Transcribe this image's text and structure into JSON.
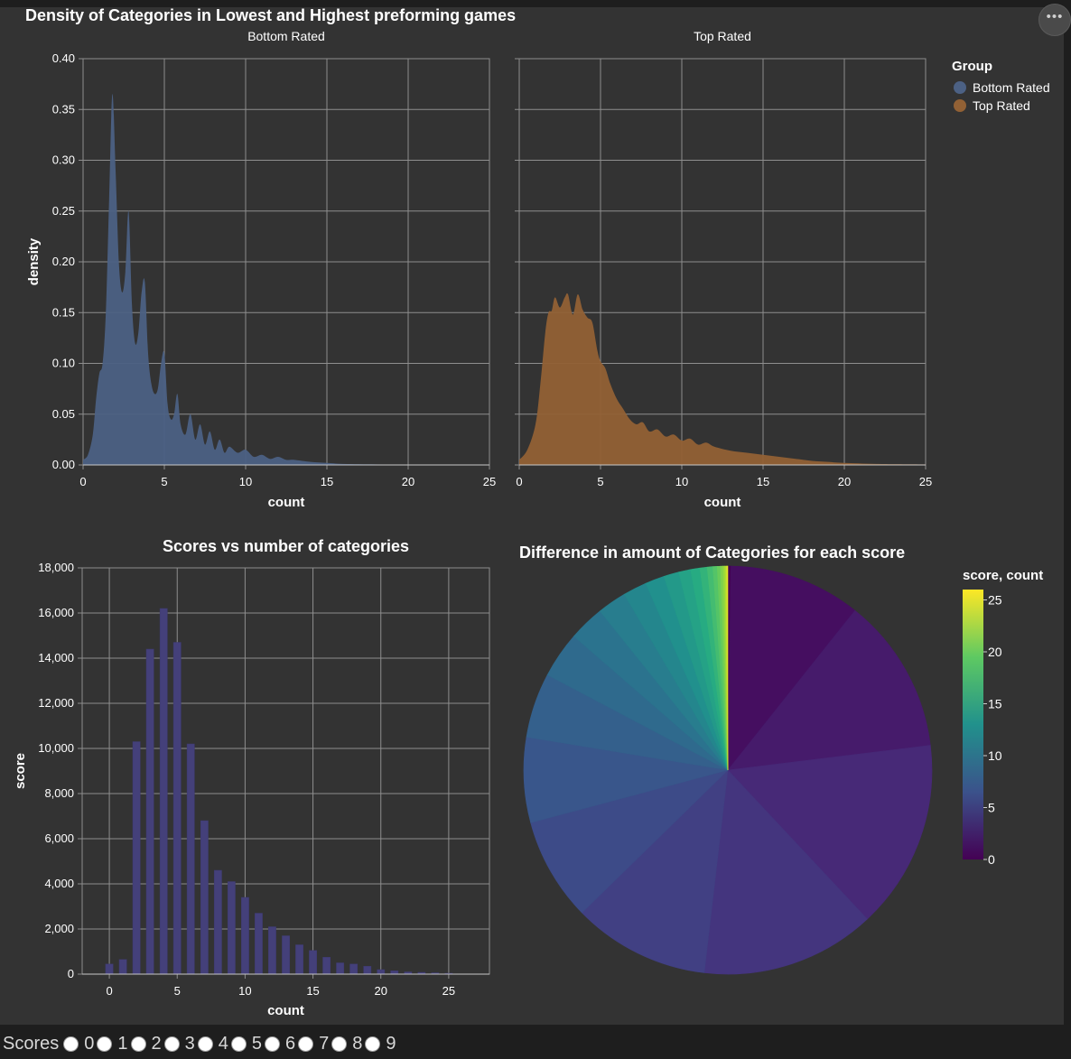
{
  "menu": {
    "label": "•••"
  },
  "main_title": "Density of Categories in Lowest and Highest preforming games",
  "colors": {
    "bottom_rated": "#4c6184",
    "top_rated": "#926135",
    "bar": "#44407a",
    "grid": "#8e8e8e",
    "background": "#333333"
  },
  "chart_data": [
    {
      "type": "area",
      "title": "Bottom Rated",
      "xlabel": "count",
      "ylabel": "density",
      "xlim": [
        0,
        25
      ],
      "ylim": [
        0,
        0.4
      ],
      "grid": true,
      "x_ticks": [
        0,
        5,
        10,
        15,
        20,
        25
      ],
      "y_ticks": [
        "0.00",
        "0.05",
        "0.10",
        "0.15",
        "0.20",
        "0.25",
        "0.30",
        "0.35",
        "0.40"
      ],
      "series": [
        {
          "name": "Bottom Rated",
          "x": [
            0,
            0.3,
            0.6,
            0.8,
            1,
            1.2,
            1.4,
            1.6,
            1.8,
            2,
            2.2,
            2.4,
            2.6,
            2.8,
            3,
            3.2,
            3.4,
            3.6,
            3.8,
            4,
            4.2,
            4.4,
            4.6,
            4.8,
            5,
            5.2,
            5.4,
            5.6,
            5.8,
            6,
            6.3,
            6.6,
            6.9,
            7.2,
            7.5,
            7.8,
            8.1,
            8.4,
            8.7,
            9,
            9.5,
            10,
            10.5,
            11,
            11.5,
            12,
            12.5,
            13,
            14,
            15,
            16,
            18,
            20,
            22,
            25
          ],
          "y": [
            0.005,
            0.01,
            0.03,
            0.065,
            0.09,
            0.1,
            0.15,
            0.26,
            0.365,
            0.29,
            0.2,
            0.17,
            0.19,
            0.25,
            0.16,
            0.12,
            0.13,
            0.17,
            0.18,
            0.11,
            0.08,
            0.07,
            0.075,
            0.1,
            0.11,
            0.06,
            0.045,
            0.05,
            0.07,
            0.04,
            0.03,
            0.05,
            0.025,
            0.04,
            0.02,
            0.033,
            0.015,
            0.025,
            0.012,
            0.018,
            0.012,
            0.015,
            0.008,
            0.01,
            0.006,
            0.008,
            0.005,
            0.005,
            0.003,
            0.002,
            0.001,
            0.0005,
            0.0003,
            0.0002,
            0.0001
          ]
        }
      ]
    },
    {
      "type": "area",
      "title": "Top Rated",
      "xlabel": "count",
      "ylabel": "",
      "xlim": [
        0,
        25
      ],
      "ylim": [
        0,
        0.4
      ],
      "grid": true,
      "x_ticks": [
        0,
        5,
        10,
        15,
        20,
        25
      ],
      "series": [
        {
          "name": "Top Rated",
          "x": [
            0,
            0.5,
            1,
            1.3,
            1.6,
            1.8,
            2,
            2.2,
            2.5,
            2.8,
            3,
            3.3,
            3.6,
            3.9,
            4.2,
            4.5,
            4.8,
            5,
            5.3,
            5.6,
            6,
            6.4,
            6.8,
            7.2,
            7.6,
            8,
            8.5,
            9,
            9.5,
            10,
            10.5,
            11,
            11.5,
            12,
            13,
            14,
            15,
            16,
            17,
            18,
            19,
            20,
            22,
            25
          ],
          "y": [
            0.005,
            0.015,
            0.04,
            0.08,
            0.13,
            0.15,
            0.152,
            0.165,
            0.155,
            0.165,
            0.168,
            0.148,
            0.168,
            0.153,
            0.145,
            0.14,
            0.113,
            0.102,
            0.095,
            0.08,
            0.065,
            0.055,
            0.045,
            0.04,
            0.042,
            0.033,
            0.035,
            0.028,
            0.03,
            0.024,
            0.026,
            0.02,
            0.022,
            0.018,
            0.014,
            0.012,
            0.01,
            0.008,
            0.006,
            0.004,
            0.003,
            0.002,
            0.001,
            0.0005
          ]
        }
      ]
    },
    {
      "type": "bar",
      "title": "Scores vs number of categories",
      "xlabel": "count",
      "ylabel": "score",
      "xlim": [
        -2,
        28
      ],
      "ylim": [
        0,
        18000
      ],
      "grid": true,
      "x_ticks": [
        0,
        5,
        10,
        15,
        20,
        25
      ],
      "y_ticks": [
        "0",
        "2,000",
        "4,000",
        "6,000",
        "8,000",
        "10,000",
        "12,000",
        "14,000",
        "16,000",
        "18,000"
      ],
      "categories": [
        0,
        1,
        2,
        3,
        4,
        5,
        6,
        7,
        8,
        9,
        10,
        11,
        12,
        13,
        14,
        15,
        16,
        17,
        18,
        19,
        20,
        21,
        22,
        23,
        24,
        25
      ],
      "values": [
        450,
        650,
        10300,
        14400,
        16200,
        14700,
        10200,
        6800,
        4600,
        4100,
        3400,
        2700,
        2100,
        1700,
        1300,
        1050,
        750,
        500,
        450,
        350,
        200,
        150,
        100,
        80,
        60,
        40
      ]
    },
    {
      "type": "pie",
      "title": "Difference in amount of Categories for each score",
      "legend_title": "score, count",
      "legend_ticks": [
        "0",
        "5",
        "10",
        "15",
        "20",
        "25"
      ],
      "color_range": [
        0,
        26
      ],
      "slices": [
        {
          "score": 0,
          "value": 450
        },
        {
          "score": 1,
          "value": 20000
        },
        {
          "score": 2,
          "value": 23600
        },
        {
          "score": 3,
          "value": 28600
        },
        {
          "score": 4,
          "value": 26400
        },
        {
          "score": 5,
          "value": 20700
        },
        {
          "score": 6,
          "value": 15600
        },
        {
          "score": 7,
          "value": 12900
        },
        {
          "score": 8,
          "value": 9800
        },
        {
          "score": 9,
          "value": 7000
        },
        {
          "score": 10,
          "value": 5400
        },
        {
          "score": 11,
          "value": 4400
        },
        {
          "score": 12,
          "value": 3600
        },
        {
          "score": 13,
          "value": 2900
        },
        {
          "score": 14,
          "value": 2300
        },
        {
          "score": 15,
          "value": 1800
        },
        {
          "score": 16,
          "value": 1400
        },
        {
          "score": 17,
          "value": 1100
        },
        {
          "score": 18,
          "value": 850
        },
        {
          "score": 19,
          "value": 650
        },
        {
          "score": 20,
          "value": 500
        },
        {
          "score": 21,
          "value": 380
        },
        {
          "score": 22,
          "value": 280
        },
        {
          "score": 23,
          "value": 200
        },
        {
          "score": 24,
          "value": 140
        },
        {
          "score": 25,
          "value": 90
        }
      ]
    }
  ],
  "legend": {
    "title": "Group",
    "items": [
      "Bottom Rated",
      "Top Rated"
    ]
  },
  "scores_control": {
    "label": "Scores",
    "options": [
      "0",
      "1",
      "2",
      "3",
      "4",
      "5",
      "6",
      "7",
      "8",
      "9"
    ]
  }
}
